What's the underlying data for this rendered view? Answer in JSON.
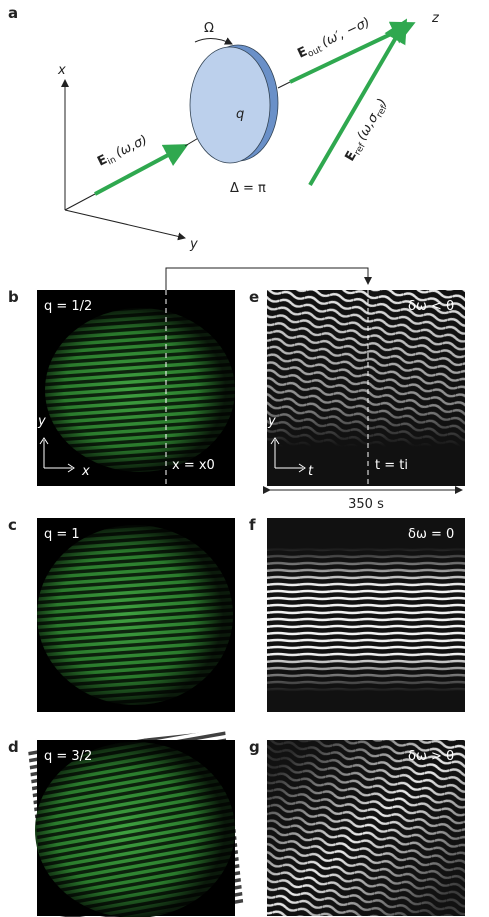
{
  "panels": {
    "a": "a",
    "b": "b",
    "c": "c",
    "d": "d",
    "e": "e",
    "f": "f",
    "g": "g"
  },
  "diagram": {
    "x_axis": "x",
    "y_axis": "y",
    "z_axis": "z",
    "rotation": "Ω",
    "charge": "q",
    "retardance": "Δ = π",
    "e_in": {
      "symbol": "E",
      "subscript": "in",
      "args": "(ω,σ)"
    },
    "e_out": {
      "symbol": "E",
      "subscript": "out",
      "args": "(ω′, −σ)"
    },
    "e_ref": {
      "symbol": "E",
      "subscript": "ref",
      "args_start": "(ω,σ",
      "args_subscript": "ref",
      "args_end": ")"
    }
  },
  "images": {
    "b": {
      "label": "q = 1/2",
      "y_axis": "y",
      "x_axis": "x",
      "cut": "x = x0"
    },
    "e": {
      "label": "δω < 0",
      "y_axis": "y",
      "t_axis": "t",
      "cut": "t = ti",
      "duration": "350 s"
    },
    "c": {
      "label": "q = 1"
    },
    "f": {
      "label": "δω = 0"
    },
    "d": {
      "label": "q = 3/2"
    },
    "g": {
      "label": "δω > 0"
    }
  }
}
